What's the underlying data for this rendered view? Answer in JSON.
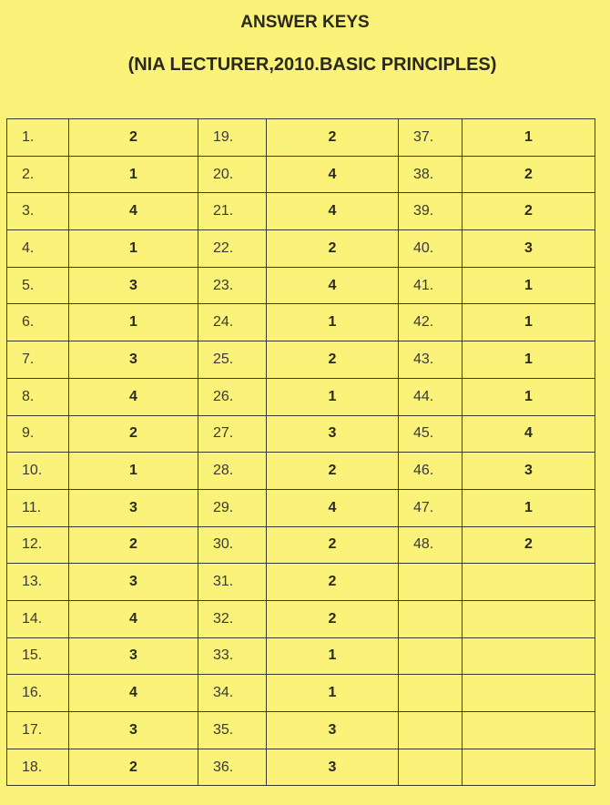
{
  "title": "ANSWER KEYS",
  "subtitle": "(NIA LECTURER,2010.BASIC PRINCIPLES)",
  "columns": [
    {
      "numbers": [
        "1.",
        "2.",
        "3.",
        "4.",
        "5.",
        "6.",
        "7.",
        "8.",
        "9.",
        "10.",
        "11.",
        "12.",
        "13.",
        "14.",
        "15.",
        "16.",
        "17.",
        "18."
      ],
      "answers": [
        "2",
        "1",
        "4",
        "1",
        "3",
        "1",
        "3",
        "4",
        "2",
        "1",
        "3",
        "2",
        "3",
        "4",
        "3",
        "4",
        "3",
        "2"
      ]
    },
    {
      "numbers": [
        "19.",
        "20.",
        "21.",
        "22.",
        "23.",
        "24.",
        "25.",
        "26.",
        "27.",
        "28.",
        "29.",
        "30.",
        "31.",
        "32.",
        "33.",
        "34.",
        "35.",
        "36."
      ],
      "answers": [
        "2",
        "4",
        "4",
        "2",
        "4",
        "1",
        "2",
        "1",
        "3",
        "2",
        "4",
        "2",
        "2",
        "2",
        "1",
        "1",
        "3",
        "3"
      ]
    },
    {
      "numbers": [
        "37.",
        "38.",
        "39.",
        "40.",
        "41.",
        "42.",
        "43.",
        "44.",
        "45.",
        "46.",
        "47.",
        "48.",
        "",
        "",
        "",
        "",
        "",
        ""
      ],
      "answers": [
        "1",
        "2",
        "2",
        "3",
        "1",
        "1",
        "1",
        "1",
        "4",
        "3",
        "1",
        "2",
        "",
        "",
        "",
        "",
        "",
        ""
      ]
    }
  ]
}
